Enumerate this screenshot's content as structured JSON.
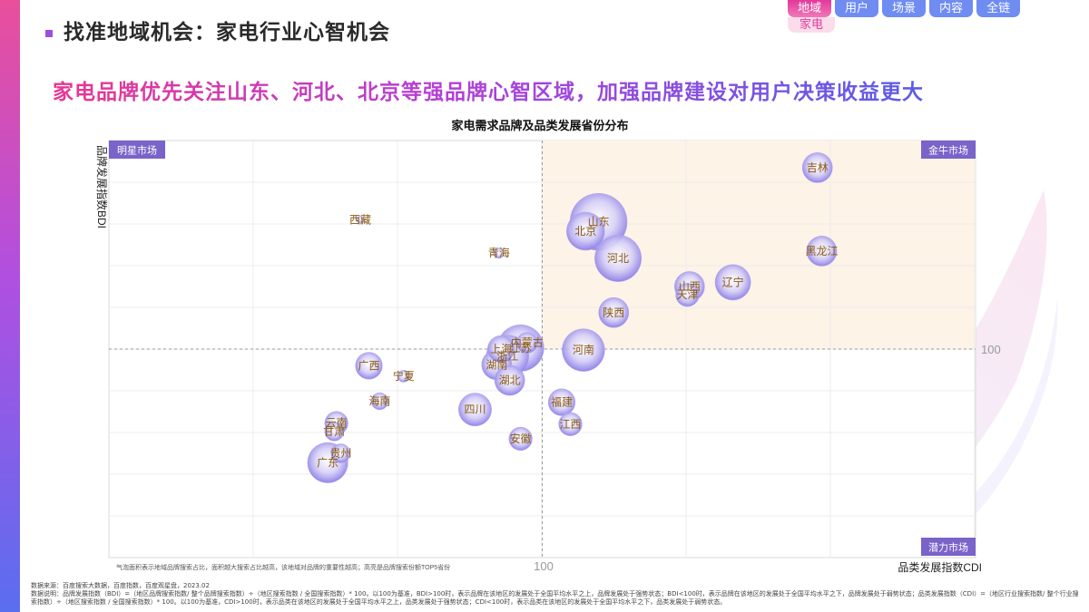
{
  "page_title": "找准地域机会：家电行业心智机会",
  "nav": {
    "tabs": [
      {
        "label": "地域",
        "active": true
      },
      {
        "label": "用户",
        "active": false
      },
      {
        "label": "场景",
        "active": false
      },
      {
        "label": "内容",
        "active": false
      },
      {
        "label": "全链",
        "active": false
      }
    ],
    "active_sub": "家电"
  },
  "headline": "家电品牌优先关注山东、河北、北京等强品牌心智区域，加强品牌建设对用户决策收益更大",
  "colors": {
    "accent_pink": "#e8368f",
    "accent_purple": "#b43fd8",
    "accent_blue": "#5b5de8",
    "quadrant_label_bg": "#7a63c9",
    "highlight_quadrant": "#fdf3e6",
    "bubble_label": "#8a5a12"
  },
  "chart_data": {
    "type": "scatter",
    "title": "家电需求品牌及品类发展省份分布",
    "xlabel": "品类发展指数CDI",
    "ylabel": "品牌发展指数BDI",
    "reference_x": 100,
    "reference_y": 100,
    "x_ref_label": "100",
    "y_ref_label": "100",
    "xlim": [
      0,
      200
    ],
    "ylim": [
      0,
      200
    ],
    "grid": true,
    "quadrants": {
      "top_left": "明星市场",
      "top_right": "金牛市场",
      "bottom_right": "潜力市场"
    },
    "note": "气泡面积表示地域品牌搜索占比，面积越大搜索占比越高，该地域对品牌的重要性越高；高亮是品牌搜索份额TOP5省份",
    "points": [
      {
        "name": "吉林",
        "x": 163.5,
        "y": 187,
        "size": 2.5
      },
      {
        "name": "山东",
        "x": 113,
        "y": 161,
        "size": 9
      },
      {
        "name": "北京",
        "x": 110,
        "y": 156.5,
        "size": 4
      },
      {
        "name": "西藏",
        "x": 58,
        "y": 162,
        "size": 0.15
      },
      {
        "name": "青海",
        "x": 90,
        "y": 146,
        "size": 0.3
      },
      {
        "name": "黑龙江",
        "x": 164.5,
        "y": 147,
        "size": 2.5
      },
      {
        "name": "河北",
        "x": 117.5,
        "y": 143.5,
        "size": 6
      },
      {
        "name": "辽宁",
        "x": 144,
        "y": 132,
        "size": 3.5
      },
      {
        "name": "山西",
        "x": 134,
        "y": 130,
        "size": 2.5
      },
      {
        "name": "天津",
        "x": 133.5,
        "y": 126,
        "size": 1.5
      },
      {
        "name": "陕西",
        "x": 116.5,
        "y": 117.5,
        "size": 2.5
      },
      {
        "name": "内蒙古",
        "x": 96.5,
        "y": 103,
        "size": 1.2
      },
      {
        "name": "江苏",
        "x": 95,
        "y": 100.5,
        "size": 6
      },
      {
        "name": "浙江",
        "x": 92,
        "y": 96.5,
        "size": 5
      },
      {
        "name": "上海",
        "x": 90.5,
        "y": 100,
        "size": 2
      },
      {
        "name": "湖南",
        "x": 89.5,
        "y": 92.5,
        "size": 2.5
      },
      {
        "name": "湖北",
        "x": 92.5,
        "y": 85,
        "size": 2.5
      },
      {
        "name": "河南",
        "x": 109.5,
        "y": 99.5,
        "size": 5
      },
      {
        "name": "广西",
        "x": 60,
        "y": 92,
        "size": 2
      },
      {
        "name": "宁夏",
        "x": 68,
        "y": 87,
        "size": 0.4
      },
      {
        "name": "海南",
        "x": 62.5,
        "y": 75,
        "size": 0.8
      },
      {
        "name": "四川",
        "x": 84.5,
        "y": 71,
        "size": 3
      },
      {
        "name": "福建",
        "x": 104.5,
        "y": 74.5,
        "size": 2
      },
      {
        "name": "江西",
        "x": 106.5,
        "y": 64,
        "size": 1.5
      },
      {
        "name": "云南",
        "x": 52.5,
        "y": 64.5,
        "size": 1.5
      },
      {
        "name": "甘肃",
        "x": 52,
        "y": 60.5,
        "size": 1
      },
      {
        "name": "安徽",
        "x": 95,
        "y": 57,
        "size": 1.5
      },
      {
        "name": "贵州",
        "x": 53.5,
        "y": 50,
        "size": 1
      },
      {
        "name": "广东",
        "x": 50.5,
        "y": 45.5,
        "size": 4.5
      }
    ]
  },
  "footer": {
    "source": "数据来源：百度搜索大数据，百度指数，百度观星盘，2023.02",
    "description": "数据说明：品牌发展指数（BDI）=（地区品牌搜索指数/ 整个品牌搜索指数）÷（地区搜索指数 / 全国搜索指数）* 100。以100为基准，BDI>100时，表示品牌在该地区的发展处于全国平均水平之上，品牌发展处于强势状态；BDI<100时，表示品牌在该地区的发展处于全国平均水平之下，品牌发展处于弱势状态；品类发展指数（CDI）=（地区行业搜索指数/ 整个行业搜索指数）÷（地区搜索指数 / 全国搜索指数）* 100。以100为基准，CDI>100时，表示品类在该地区的发展处于全国平均水平之上，品类发展处于强势状态；CDI<100时，表示品类在该地区的发展处于全国平均水平之下，品类发展处于弱势状态。"
  }
}
